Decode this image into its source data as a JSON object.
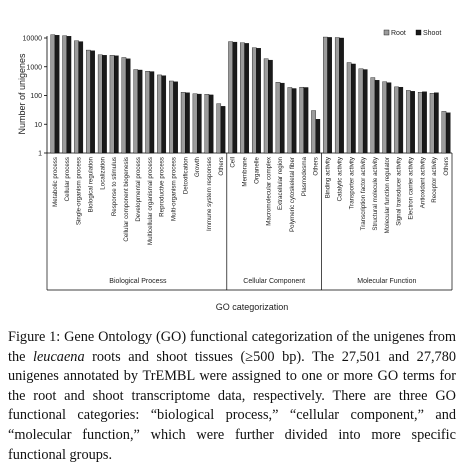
{
  "chart_data": {
    "type": "bar",
    "xlabel": "GO categorization",
    "ylabel": "Number of unigenes",
    "yscale": "log",
    "ylim": [
      1,
      10000
    ],
    "yticks": [
      "1",
      "10",
      "100",
      "1000",
      "10000"
    ],
    "legend_position": "top-right",
    "grid": false,
    "series": [
      {
        "name": "Root",
        "color": "#9c9c9c"
      },
      {
        "name": "Shoot",
        "color": "#1a1a1a"
      }
    ],
    "groups": [
      {
        "name": "Biological Process",
        "categories": [
          {
            "label": "Metabolic process",
            "root": 13000,
            "shoot": 12500
          },
          {
            "label": "Cellular process",
            "root": 12000,
            "shoot": 11500
          },
          {
            "label": "Single-organism process",
            "root": 8000,
            "shoot": 7500
          },
          {
            "label": "Biological regulation",
            "root": 3800,
            "shoot": 3600
          },
          {
            "label": "Localization",
            "root": 2600,
            "shoot": 2500
          },
          {
            "label": "Response to stimulus",
            "root": 2500,
            "shoot": 2400
          },
          {
            "label": "Cellular component biogenesis",
            "root": 2100,
            "shoot": 1900
          },
          {
            "label": "Developmental process",
            "root": 800,
            "shoot": 770
          },
          {
            "label": "Multicellular organismal process",
            "root": 700,
            "shoot": 680
          },
          {
            "label": "Reproductive process",
            "root": 520,
            "shoot": 490
          },
          {
            "label": "Multi-organism process",
            "root": 320,
            "shoot": 300
          },
          {
            "label": "Detoxification",
            "root": 130,
            "shoot": 125
          },
          {
            "label": "Growth",
            "root": 115,
            "shoot": 112
          },
          {
            "label": "Immune system responses",
            "root": 110,
            "shoot": 105
          },
          {
            "label": "Others",
            "root": 52,
            "shoot": 42
          }
        ]
      },
      {
        "name": "Cellular Component",
        "categories": [
          {
            "label": "Cell",
            "root": 7500,
            "shoot": 7200
          },
          {
            "label": "Membrane",
            "root": 6800,
            "shoot": 6500
          },
          {
            "label": "Organelle",
            "root": 4600,
            "shoot": 4400
          },
          {
            "label": "Macromolecular complex",
            "root": 1900,
            "shoot": 1700
          },
          {
            "label": "Extracellular region",
            "root": 290,
            "shoot": 270
          },
          {
            "label": "Polymeric cytoskeletal fiber",
            "root": 190,
            "shoot": 175
          },
          {
            "label": "Plasmodesma",
            "root": 195,
            "shoot": 190
          },
          {
            "label": "Others",
            "root": 30,
            "shoot": 15
          }
        ]
      },
      {
        "name": "Molecular Function",
        "categories": [
          {
            "label": "Binding activity",
            "root": 10800,
            "shoot": 10500
          },
          {
            "label": "Catalytic activity",
            "root": 10400,
            "shoot": 10000
          },
          {
            "label": "Transporter activity",
            "root": 1400,
            "shoot": 1250
          },
          {
            "label": "Transcription factor activity",
            "root": 850,
            "shoot": 800
          },
          {
            "label": "Structural molecule activity",
            "root": 420,
            "shoot": 340
          },
          {
            "label": "Molecular function regulator",
            "root": 300,
            "shoot": 280
          },
          {
            "label": "Signal transducer activity",
            "root": 200,
            "shoot": 195
          },
          {
            "label": "Electron carrier activity",
            "root": 150,
            "shoot": 140
          },
          {
            "label": "Antioxidant activity",
            "root": 130,
            "shoot": 135
          },
          {
            "label": "Receptor activity",
            "root": 120,
            "shoot": 125
          },
          {
            "label": "Others",
            "root": 28,
            "shoot": 25
          }
        ]
      }
    ]
  },
  "caption": {
    "label": "Figure 1:",
    "part1": " Gene Ontology (GO) functional categorization of the unigenes from the ",
    "species": "leucaena",
    "part2": " roots and shoot tissues (≥500 bp). The 27,501 and 27,780 unigenes annotated by TrEMBL were assigned to one or more GO terms for the root and shoot transcriptome data, respectively. There are three GO functional categories: “biological process,” “cellular component,” and “molecular function,” which were further divided into more specific functional groups."
  }
}
